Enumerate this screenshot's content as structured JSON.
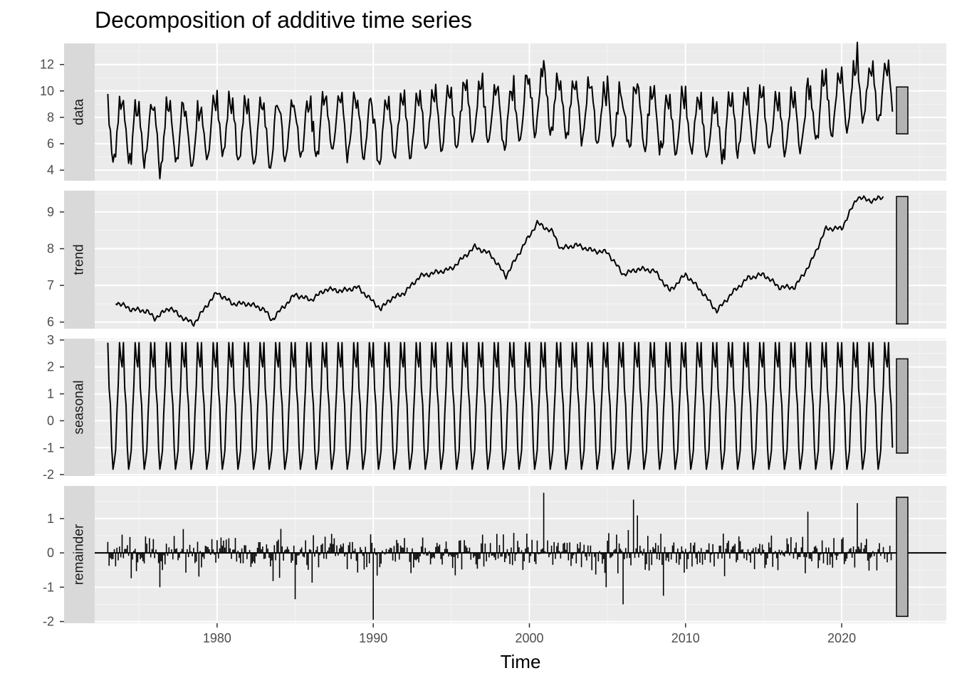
{
  "chart_data": {
    "type": "line",
    "title": "Decomposition of additive time series",
    "xlabel": "Time",
    "xlim": [
      1970.2,
      2026.7
    ],
    "x_ticks": [
      "1980",
      "1990",
      "2000",
      "2010",
      "2020"
    ],
    "x_tick_values": [
      1980,
      1990,
      2000,
      2010,
      2020
    ],
    "start": 1973,
    "frequency": 12,
    "facets": [
      {
        "name": "data",
        "ylim": [
          3.2,
          13.6
        ],
        "y_ticks": [
          "4",
          "6",
          "8",
          "10",
          "12"
        ],
        "y_tick_values": [
          4,
          6,
          8,
          10,
          12
        ],
        "range_bar": [
          6.75,
          10.3
        ],
        "geom": "line"
      },
      {
        "name": "trend",
        "ylim": [
          5.82,
          9.58
        ],
        "y_ticks": [
          "6",
          "7",
          "8",
          "9"
        ],
        "y_tick_values": [
          6,
          7,
          8,
          9
        ],
        "range_bar": [
          5.95,
          9.42
        ],
        "geom": "line",
        "trend_knots": [
          [
            1973.5,
            6.55
          ],
          [
            1974.5,
            6.35
          ],
          [
            1975.5,
            6.3
          ],
          [
            1976,
            6.1
          ],
          [
            1977,
            6.4
          ],
          [
            1977.5,
            6.2
          ],
          [
            1978.5,
            5.95
          ],
          [
            1979.5,
            6.55
          ],
          [
            1980,
            6.8
          ],
          [
            1981,
            6.5
          ],
          [
            1982,
            6.5
          ],
          [
            1983,
            6.35
          ],
          [
            1983.5,
            6.05
          ],
          [
            1984,
            6.3
          ],
          [
            1985,
            6.75
          ],
          [
            1986,
            6.6
          ],
          [
            1987,
            6.9
          ],
          [
            1988,
            6.85
          ],
          [
            1989,
            6.95
          ],
          [
            1990,
            6.55
          ],
          [
            1990.5,
            6.35
          ],
          [
            1991,
            6.6
          ],
          [
            1992,
            6.8
          ],
          [
            1993,
            7.25
          ],
          [
            1994,
            7.35
          ],
          [
            1995,
            7.45
          ],
          [
            1996,
            7.85
          ],
          [
            1996.5,
            8.05
          ],
          [
            1997.5,
            7.85
          ],
          [
            1998.5,
            7.25
          ],
          [
            1999.5,
            8.0
          ],
          [
            2000.5,
            8.7
          ],
          [
            2001.5,
            8.45
          ],
          [
            2002,
            8.0
          ],
          [
            2003,
            8.1
          ],
          [
            2004,
            7.95
          ],
          [
            2005,
            7.9
          ],
          [
            2006,
            7.3
          ],
          [
            2007,
            7.45
          ],
          [
            2008,
            7.4
          ],
          [
            2009,
            6.85
          ],
          [
            2010,
            7.3
          ],
          [
            2011,
            6.85
          ],
          [
            2012,
            6.3
          ],
          [
            2013,
            6.8
          ],
          [
            2014,
            7.2
          ],
          [
            2015,
            7.3
          ],
          [
            2016,
            6.95
          ],
          [
            2017,
            6.95
          ],
          [
            2018,
            7.6
          ],
          [
            2019,
            8.55
          ],
          [
            2020,
            8.55
          ],
          [
            2021,
            9.4
          ],
          [
            2022,
            9.3
          ],
          [
            2022.5,
            9.4
          ]
        ]
      },
      {
        "name": "seasonal",
        "ylim": [
          -2.05,
          3.05
        ],
        "y_ticks": [
          "-2",
          "-1",
          "0",
          "1",
          "2",
          "3"
        ],
        "y_tick_values": [
          -2,
          -1,
          0,
          1,
          2,
          3
        ],
        "range_bar": [
          -1.2,
          2.3
        ],
        "geom": "line",
        "monthly_pattern": [
          2.9,
          1.2,
          0.6,
          -1.0,
          -1.8,
          -1.5,
          -1.1,
          0.3,
          1.3,
          2.9,
          2.3,
          2.0
        ]
      },
      {
        "name": "remainder",
        "ylim": [
          -2.05,
          1.95
        ],
        "y_ticks": [
          "-2",
          "-1",
          "0",
          "1"
        ],
        "y_tick_values": [
          -2,
          -1,
          0,
          1
        ],
        "range_bar": [
          -1.85,
          1.62
        ],
        "geom": "bar",
        "notable_spikes": [
          [
            1990.0,
            -1.95
          ],
          [
            2000.9,
            1.75
          ],
          [
            2006.0,
            -1.5
          ],
          [
            2006.7,
            1.55
          ],
          [
            1985.0,
            -1.35
          ],
          [
            2008.6,
            -1.25
          ],
          [
            2021.0,
            1.45
          ],
          [
            2017.8,
            1.2
          ],
          [
            1976.3,
            -1.0
          ]
        ]
      }
    ]
  }
}
